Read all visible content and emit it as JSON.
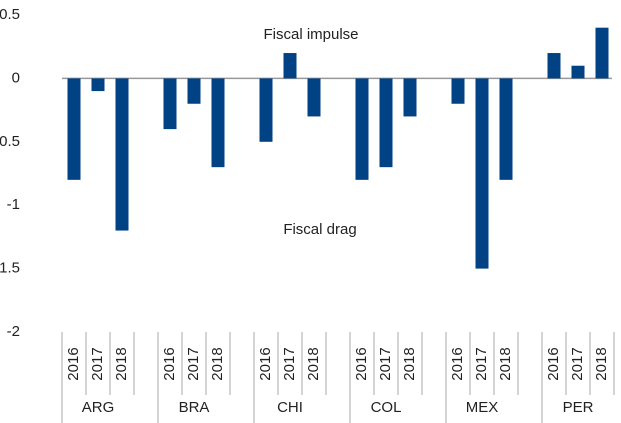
{
  "chart_data": {
    "type": "bar",
    "groups": [
      "ARG",
      "BRA",
      "CHI",
      "COL",
      "MEX",
      "PER"
    ],
    "categories": [
      "2016",
      "2017",
      "2018",
      "2016",
      "2017",
      "2018",
      "2016",
      "2017",
      "2018",
      "2016",
      "2017",
      "2018",
      "2016",
      "2017",
      "2018",
      "2016",
      "2017",
      "2018"
    ],
    "values": [
      -0.8,
      -0.1,
      -1.2,
      -0.4,
      -0.2,
      -0.7,
      -0.5,
      0.2,
      -0.3,
      -0.8,
      -0.7,
      -0.3,
      -0.2,
      -1.5,
      -0.8,
      0.2,
      0.1,
      0.4
    ],
    "color": "#004283",
    "ylim": [
      -2,
      0.5
    ],
    "yticks": [
      0.5,
      0,
      -0.5,
      -1,
      -1.5,
      -2
    ],
    "annotations": [
      "Fiscal impulse",
      "Fiscal drag"
    ]
  }
}
